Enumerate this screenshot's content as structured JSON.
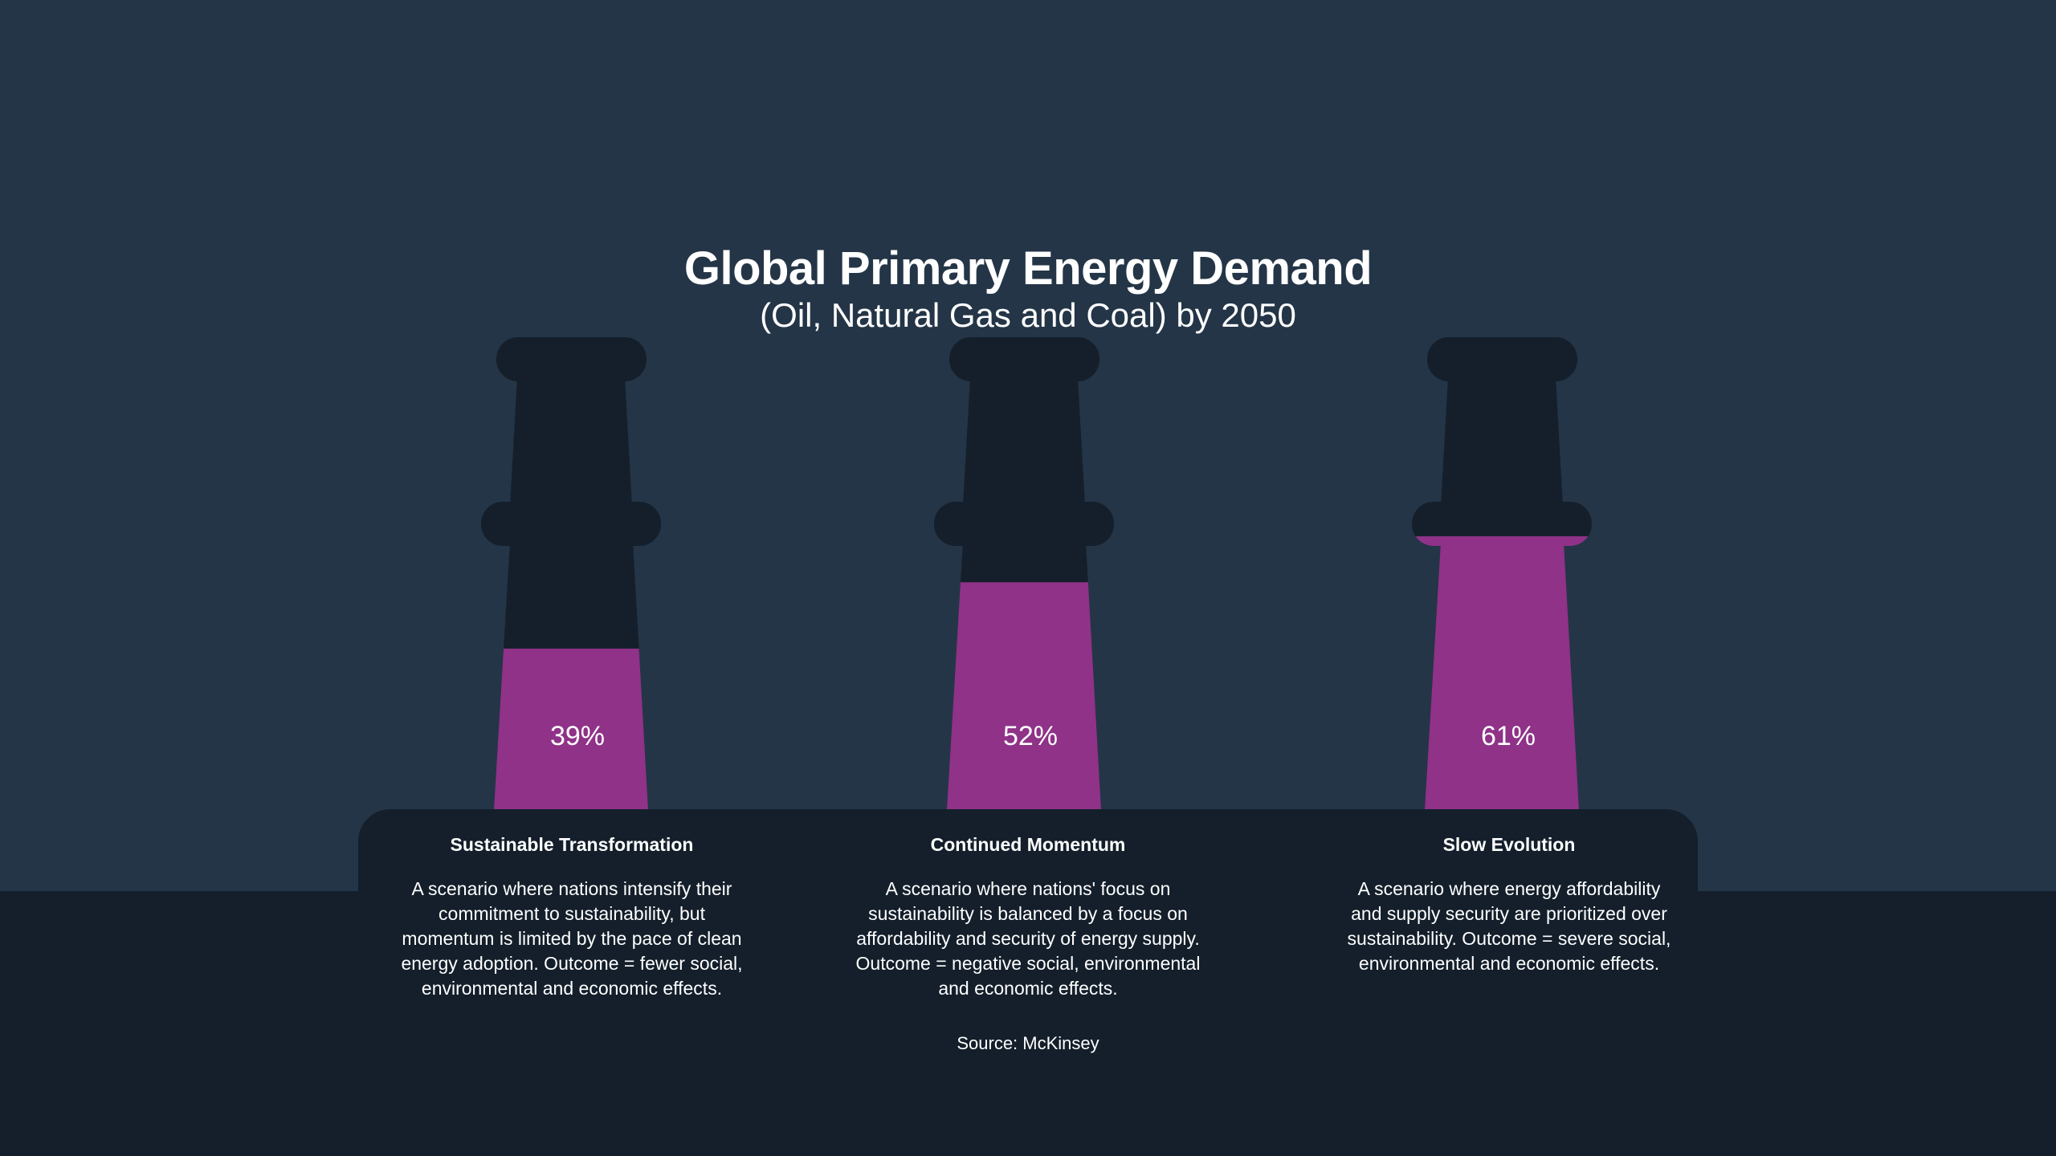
{
  "title": "Global Primary Energy Demand",
  "subtitle": "(Oil, Natural Gas and Coal) by 2050",
  "source": "Source: McKinsey",
  "colors": {
    "background": "#243547",
    "chimney": "#141f2b",
    "fill": "#8f3288",
    "text": "#ffffff"
  },
  "chart_data": {
    "type": "bar",
    "title": "Global Primary Energy Demand",
    "subtitle": "(Oil, Natural Gas and Coal) by 2050",
    "categories": [
      "Sustainable Transformation",
      "Continued Momentum",
      "Slow Evolution"
    ],
    "values": [
      39,
      52,
      61
    ],
    "data_labels": [
      "39%",
      "52%",
      "61%"
    ],
    "unit": "%",
    "ylim": [
      0,
      100
    ],
    "style": "chimney-shaped fill gauges"
  },
  "scenarios": [
    {
      "name": "Sustainable Transformation",
      "label": "39%",
      "lines": [
        "A scenario where nations intensify their",
        "commitment to sustainability, but",
        "momentum is limited by the pace of clean",
        "energy adoption. Outcome = fewer social,",
        "environmental and economic effects."
      ]
    },
    {
      "name": "Continued Momentum",
      "label": "52%",
      "lines": [
        "A scenario where nations' focus on",
        "sustainability is balanced by a focus on",
        "affordability and security of energy supply.",
        "Outcome = negative social, environmental",
        "and economic effects."
      ]
    },
    {
      "name": "Slow Evolution",
      "label": "61%",
      "lines": [
        "A scenario where energy affordability",
        "and supply security are prioritized over",
        "sustainability. Outcome = severe social,",
        "environmental and economic effects."
      ]
    }
  ]
}
